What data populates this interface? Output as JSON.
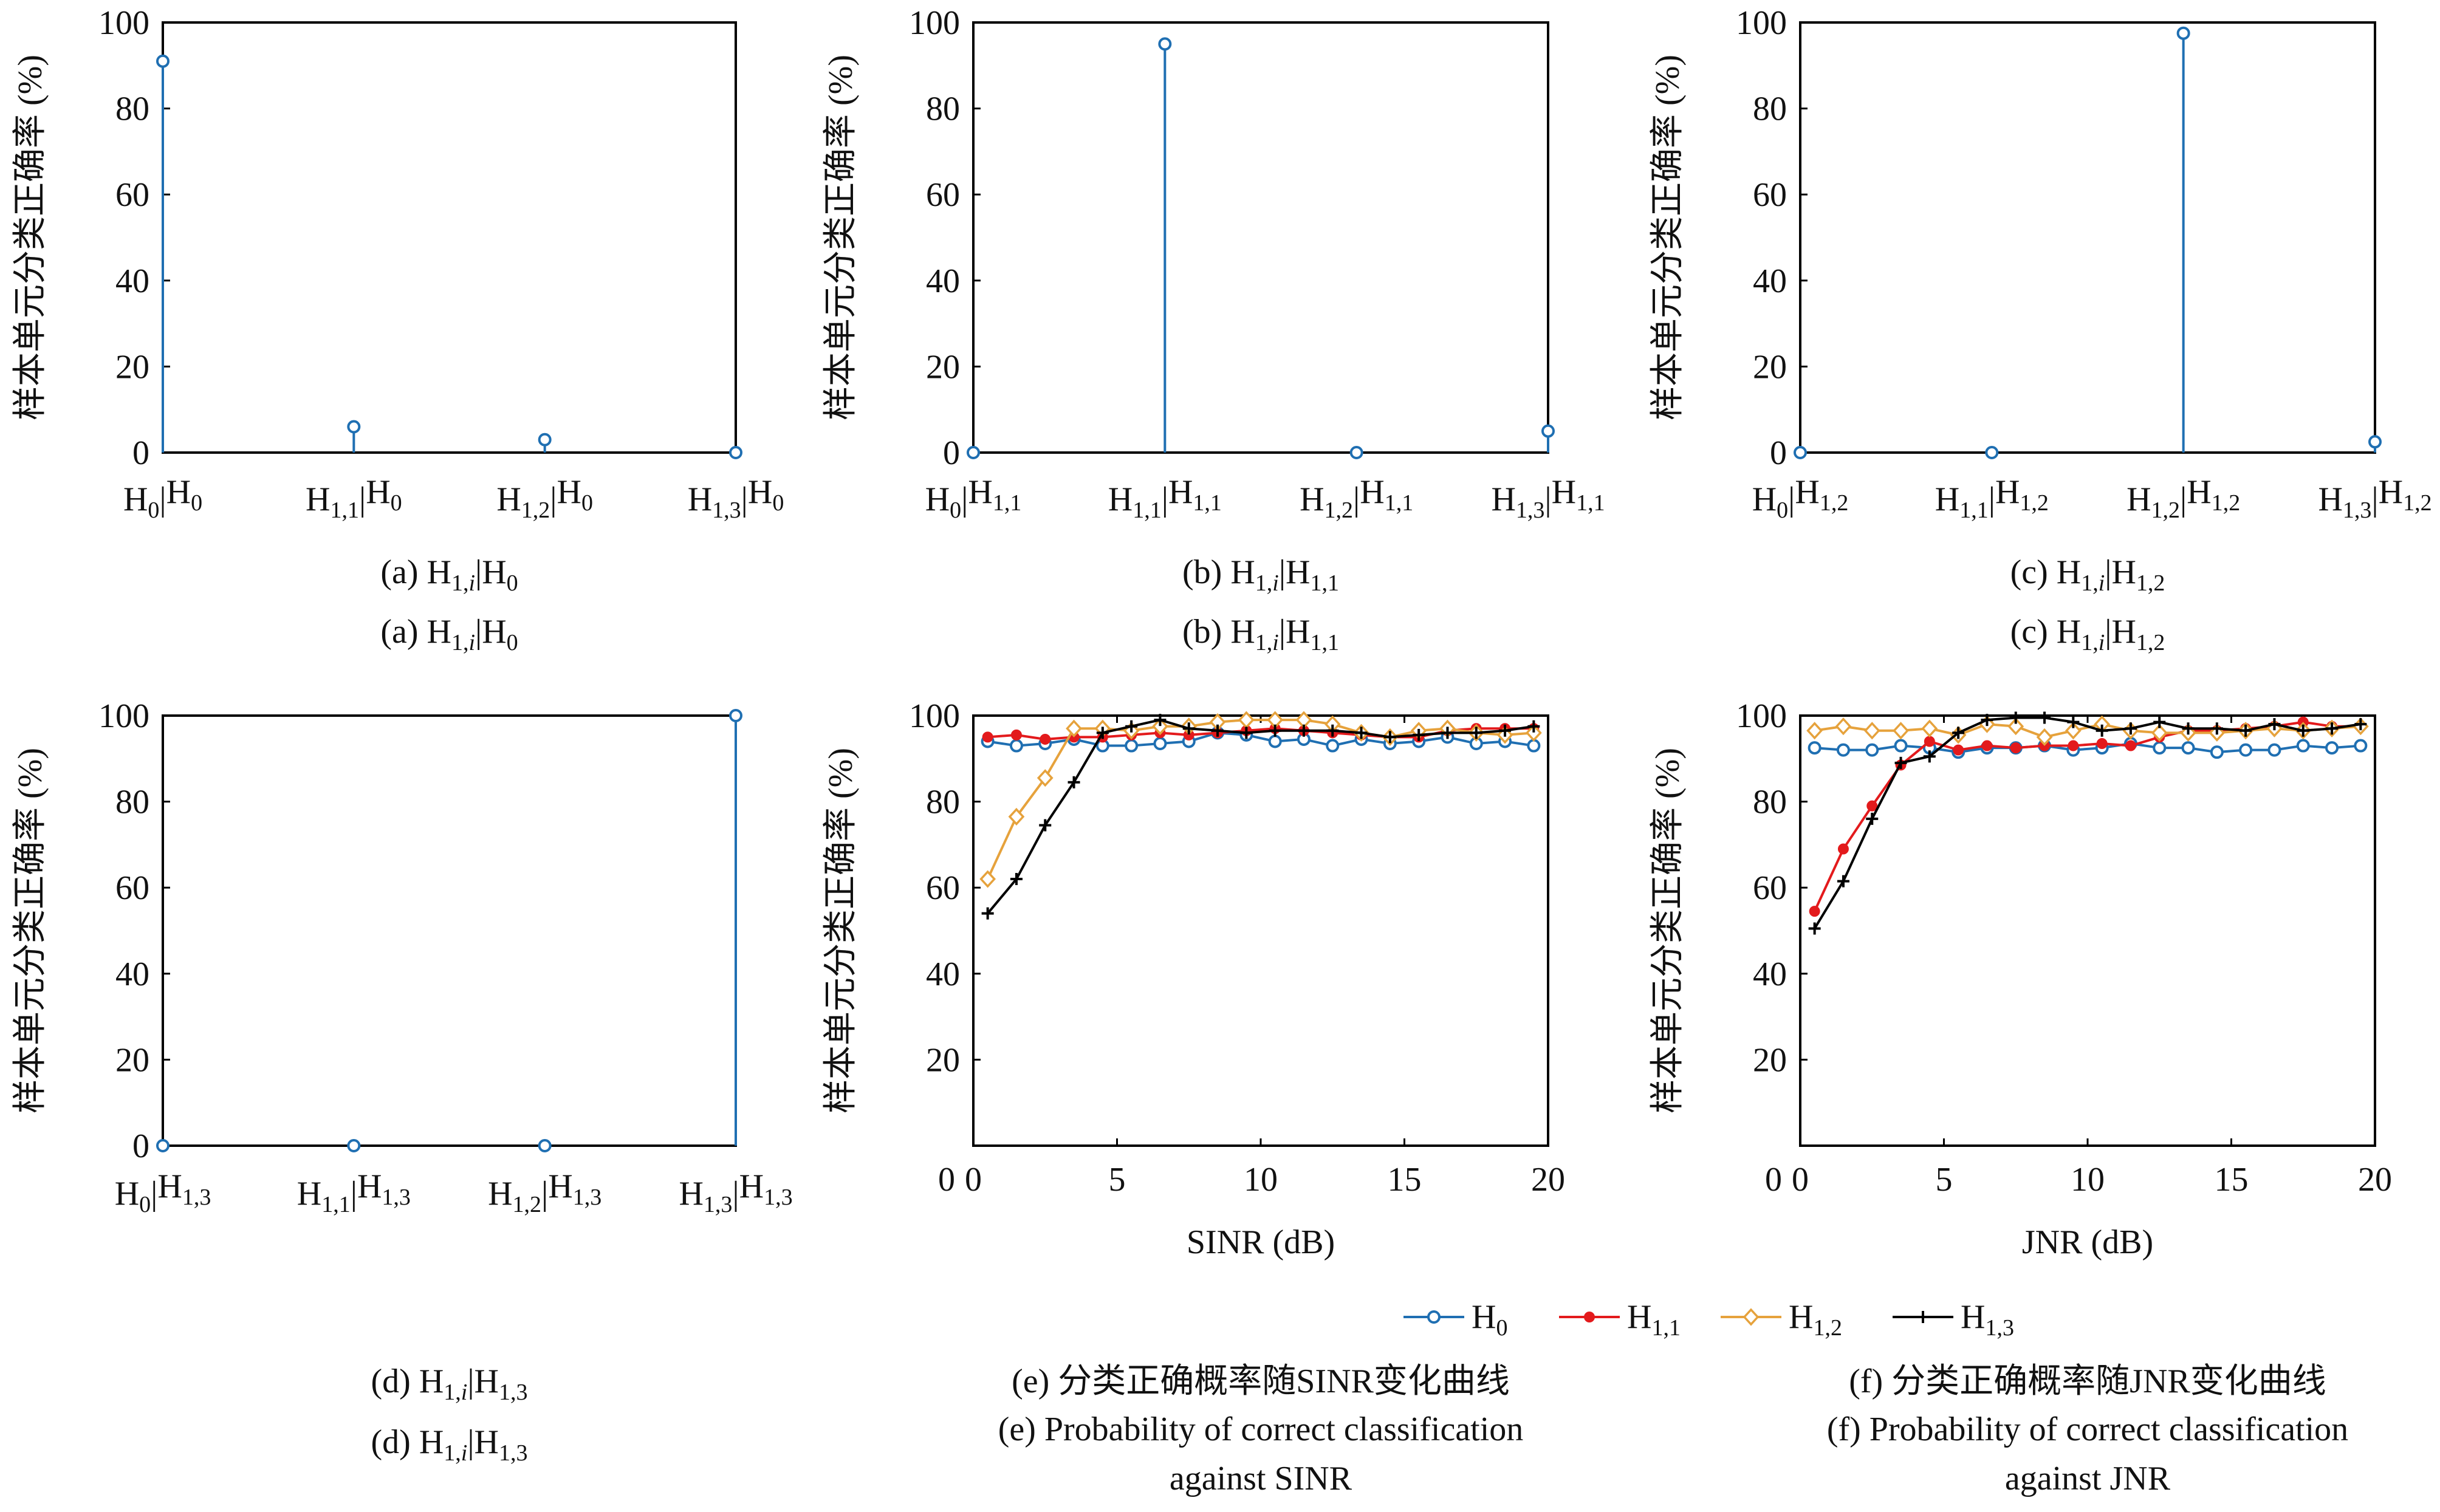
{
  "chart_data": [
    {
      "type": "stem",
      "panel": "a",
      "ylabel": "样本单元分类正确率 (%)",
      "ylim": [
        0,
        100
      ],
      "yticks": [
        "0",
        "20",
        "40",
        "60",
        "80",
        "100"
      ],
      "categories": [
        {
          "base": "H",
          "sub": "0",
          "sep": "|",
          "base2": "H",
          "sub2": "0"
        },
        {
          "base": "H",
          "sub": "1,1",
          "sep": "|",
          "base2": "H",
          "sub2": "0"
        },
        {
          "base": "H",
          "sub": "1,2",
          "sep": "|",
          "base2": "H",
          "sub2": "0"
        },
        {
          "base": "H",
          "sub": "1,3",
          "sep": "|",
          "base2": "H",
          "sub2": "0"
        }
      ],
      "values": [
        91,
        6,
        3,
        0
      ],
      "captions": [
        {
          "pre": "(a) H",
          "sub": "1,",
          "subi": "i",
          "mid": "|H",
          "sub2": "0",
          "post": ""
        },
        {
          "pre": "(a) H",
          "sub": "1,",
          "subi": "i",
          "mid": "|H",
          "sub2": "0",
          "post": ""
        }
      ]
    },
    {
      "type": "stem",
      "panel": "b",
      "ylabel": "样本单元分类正确率 (%)",
      "ylim": [
        0,
        100
      ],
      "yticks": [
        "0",
        "20",
        "40",
        "60",
        "80",
        "100"
      ],
      "categories": [
        {
          "base": "H",
          "sub": "0",
          "sep": "|",
          "base2": "H",
          "sub2": "1,1"
        },
        {
          "base": "H",
          "sub": "1,1",
          "sep": "|",
          "base2": "H",
          "sub2": "1,1"
        },
        {
          "base": "H",
          "sub": "1,2",
          "sep": "|",
          "base2": "H",
          "sub2": "1,1"
        },
        {
          "base": "H",
          "sub": "1,3",
          "sep": "|",
          "base2": "H",
          "sub2": "1,1"
        }
      ],
      "values": [
        0,
        95,
        0,
        5
      ],
      "captions": [
        {
          "pre": "(b) H",
          "sub": "1,",
          "subi": "i",
          "mid": "|H",
          "sub2": "1,1",
          "post": ""
        },
        {
          "pre": "(b) H",
          "sub": "1,",
          "subi": "i",
          "mid": "|H",
          "sub2": "1,1",
          "post": ""
        }
      ]
    },
    {
      "type": "stem",
      "panel": "c",
      "ylabel": "样本单元分类正确率 (%)",
      "ylim": [
        0,
        100
      ],
      "yticks": [
        "0",
        "20",
        "40",
        "60",
        "80",
        "100"
      ],
      "categories": [
        {
          "base": "H",
          "sub": "0",
          "sep": "|",
          "base2": "H",
          "sub2": "1,2"
        },
        {
          "base": "H",
          "sub": "1,1",
          "sep": "|",
          "base2": "H",
          "sub2": "1,2"
        },
        {
          "base": "H",
          "sub": "1,2",
          "sep": "|",
          "base2": "H",
          "sub2": "1,2"
        },
        {
          "base": "H",
          "sub": "1,3",
          "sep": "|",
          "base2": "H",
          "sub2": "1,2"
        }
      ],
      "values": [
        0,
        0,
        97.5,
        2.5
      ],
      "captions": [
        {
          "pre": "(c) H",
          "sub": "1,",
          "subi": "i",
          "mid": "|H",
          "sub2": "1,2",
          "post": ""
        },
        {
          "pre": "(c) H",
          "sub": "1,",
          "subi": "i",
          "mid": "|H",
          "sub2": "1,2",
          "post": ""
        }
      ]
    },
    {
      "type": "stem",
      "panel": "d",
      "ylabel": "样本单元分类正确率 (%)",
      "ylim": [
        0,
        100
      ],
      "yticks": [
        "0",
        "20",
        "40",
        "60",
        "80",
        "100"
      ],
      "categories": [
        {
          "base": "H",
          "sub": "0",
          "sep": "|",
          "base2": "H",
          "sub2": "1,3"
        },
        {
          "base": "H",
          "sub": "1,1",
          "sep": "|",
          "base2": "H",
          "sub2": "1,3"
        },
        {
          "base": "H",
          "sub": "1,2",
          "sep": "|",
          "base2": "H",
          "sub2": "1,3"
        },
        {
          "base": "H",
          "sub": "1,3",
          "sep": "|",
          "base2": "H",
          "sub2": "1,3"
        }
      ],
      "values": [
        0,
        0,
        0,
        100
      ],
      "captions": [
        {
          "pre": "(d) H",
          "sub": "1,",
          "subi": "i",
          "mid": "|H",
          "sub2": "1,3",
          "post": ""
        },
        {
          "pre": "(d) H",
          "sub": "1,",
          "subi": "i",
          "mid": "|H",
          "sub2": "1,3",
          "post": ""
        }
      ]
    },
    {
      "type": "line",
      "panel": "e",
      "xlabel": "SINR (dB)",
      "ylabel": "样本单元分类正确率 (%)",
      "xlim": [
        0,
        20
      ],
      "ylim": [
        0,
        100
      ],
      "xticks": [
        "0",
        "5",
        "10",
        "15",
        "20"
      ],
      "yticks": [
        "20",
        "40",
        "60",
        "80",
        "100"
      ],
      "x": [
        0.5,
        1.5,
        2.5,
        3.5,
        4.5,
        5.5,
        6.5,
        7.5,
        8.5,
        9.5,
        10.5,
        11.5,
        12.5,
        13.5,
        14.5,
        15.5,
        16.5,
        17.5,
        18.5,
        19.5
      ],
      "series": [
        {
          "name": "H0",
          "color": "#1f6fb2",
          "marker": "circle",
          "values": [
            94,
            93,
            93.5,
            94.5,
            93,
            93,
            93.5,
            94,
            96,
            95.5,
            94,
            94.5,
            93,
            94.5,
            93.5,
            94,
            95,
            93.5,
            94,
            93
          ]
        },
        {
          "name": "H1,1",
          "color": "#e31a1c",
          "marker": "dot",
          "values": [
            95,
            95.5,
            94.5,
            95,
            95,
            95.5,
            96,
            95.5,
            96,
            96.5,
            97,
            96.5,
            96,
            95.5,
            95,
            95,
            96.5,
            97,
            97,
            97
          ]
        },
        {
          "name": "H1,2",
          "color": "#e6a23c",
          "marker": "diamond",
          "values": [
            62,
            76.5,
            85.5,
            97,
            97,
            96.5,
            97.5,
            97.5,
            98.5,
            99,
            99,
            99,
            98,
            96,
            95,
            96.5,
            97,
            96,
            95.5,
            96
          ]
        },
        {
          "name": "H1,3",
          "color": "#000000",
          "marker": "plus",
          "values": [
            54,
            62,
            74.5,
            84.5,
            96,
            97.5,
            99,
            97,
            96.5,
            96,
            96.5,
            96.5,
            96.5,
            96,
            95,
            95.5,
            96,
            96,
            96.5,
            97.5
          ]
        }
      ],
      "captions": [
        {
          "text": "(e) 分类正确概率随SINR变化曲线"
        },
        {
          "text": "(e) Probability of correct classification"
        },
        {
          "text": "against SINR"
        }
      ]
    },
    {
      "type": "line",
      "panel": "f",
      "xlabel": "JNR (dB)",
      "ylabel": "样本单元分类正确率 (%)",
      "xlim": [
        0,
        20
      ],
      "ylim": [
        0,
        100
      ],
      "xticks": [
        "0",
        "5",
        "10",
        "15",
        "20"
      ],
      "yticks": [
        "20",
        "40",
        "60",
        "80",
        "100"
      ],
      "x": [
        0.5,
        1.5,
        2.5,
        3.5,
        4.5,
        5.5,
        6.5,
        7.5,
        8.5,
        9.5,
        10.5,
        11.5,
        12.5,
        13.5,
        14.5,
        15.5,
        16.5,
        17.5,
        18.5,
        19.5
      ],
      "series": [
        {
          "name": "H0",
          "color": "#1f6fb2",
          "marker": "circle",
          "values": [
            92.5,
            92,
            92,
            93,
            92.5,
            91.5,
            92.5,
            92.5,
            93,
            92,
            92.5,
            93.5,
            92.5,
            92.5,
            91.5,
            92,
            92,
            93,
            92.5,
            93
          ]
        },
        {
          "name": "H1,1",
          "color": "#e31a1c",
          "marker": "dot",
          "values": [
            54.5,
            69,
            79,
            88.5,
            94,
            92,
            93,
            92.5,
            93,
            93,
            93.5,
            93,
            95,
            96.5,
            96.5,
            97,
            97.5,
            98.5,
            97.5,
            97.5
          ]
        },
        {
          "name": "H1,2",
          "color": "#e6a23c",
          "marker": "diamond",
          "values": [
            96.5,
            97.5,
            96.5,
            96.5,
            97,
            95.5,
            98,
            97.5,
            95,
            96.5,
            98,
            96.5,
            96,
            96,
            96,
            96.5,
            97,
            96.5,
            97,
            97.5
          ]
        },
        {
          "name": "H1,3",
          "color": "#000000",
          "marker": "plus",
          "values": [
            50.5,
            61.5,
            76,
            89,
            90.5,
            96,
            99,
            99.5,
            99.5,
            98.5,
            96.5,
            97,
            98.5,
            97,
            97,
            96.5,
            98,
            96.5,
            97,
            98
          ]
        }
      ],
      "captions": [
        {
          "text": "(f) 分类正确概率随JNR变化曲线"
        },
        {
          "text": "(f) Probability of correct classification"
        },
        {
          "text": "against JNR"
        }
      ]
    }
  ],
  "legend": [
    {
      "base": "H",
      "sub": "0",
      "color": "#1f6fb2",
      "marker": "circle"
    },
    {
      "base": "H",
      "sub": "1,1",
      "color": "#e31a1c",
      "marker": "dot"
    },
    {
      "base": "H",
      "sub": "1,2",
      "color": "#e6a23c",
      "marker": "diamond"
    },
    {
      "base": "H",
      "sub": "1,3",
      "color": "#000000",
      "marker": "plus"
    }
  ]
}
